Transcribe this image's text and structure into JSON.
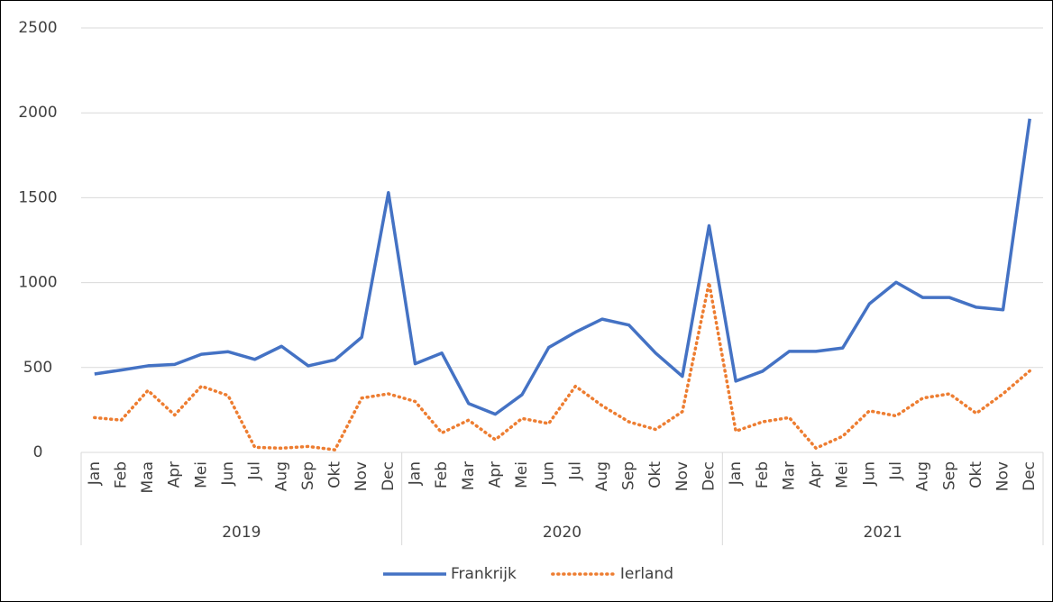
{
  "chart_data": {
    "type": "line",
    "groups": [
      {
        "name": "2019",
        "categories": [
          "Jan",
          "Feb",
          "Maa",
          "Apr",
          "Mei",
          "Jun",
          "Jul",
          "Aug",
          "Sep",
          "Okt",
          "Nov",
          "Dec"
        ]
      },
      {
        "name": "2020",
        "categories": [
          "Jan",
          "Feb",
          "Mar",
          "Apr",
          "Mei",
          "Jun",
          "Jul",
          "Aug",
          "Sep",
          "Okt",
          "Nov",
          "Dec"
        ]
      },
      {
        "name": "2021",
        "categories": [
          "Jan",
          "Feb",
          "Mar",
          "Apr",
          "Mei",
          "Jun",
          "Jul",
          "Aug",
          "Sep",
          "Okt",
          "Nov",
          "Dec"
        ]
      }
    ],
    "series": [
      {
        "name": "Frankrijk",
        "color": "#4472c4",
        "dash": "solid",
        "values": [
          462,
          485,
          510,
          518,
          578,
          593,
          548,
          625,
          510,
          545,
          678,
          1530,
          522,
          585,
          288,
          225,
          340,
          618,
          708,
          785,
          750,
          585,
          448,
          1335,
          420,
          478,
          595,
          595,
          615,
          875,
          1002,
          912,
          912,
          855,
          840,
          1965
        ]
      },
      {
        "name": "Ierland",
        "color": "#ed7d31",
        "dash": "dotted",
        "values": [
          205,
          190,
          365,
          220,
          390,
          335,
          30,
          25,
          35,
          15,
          320,
          345,
          300,
          115,
          190,
          75,
          200,
          170,
          390,
          275,
          180,
          135,
          240,
          1000,
          125,
          180,
          205,
          25,
          95,
          245,
          215,
          320,
          345,
          230,
          345,
          480
        ]
      }
    ],
    "ylim": [
      0,
      2500
    ],
    "yticks": [
      0,
      500,
      1000,
      1500,
      2000,
      2500
    ],
    "grid": true,
    "legend": "bottom"
  }
}
